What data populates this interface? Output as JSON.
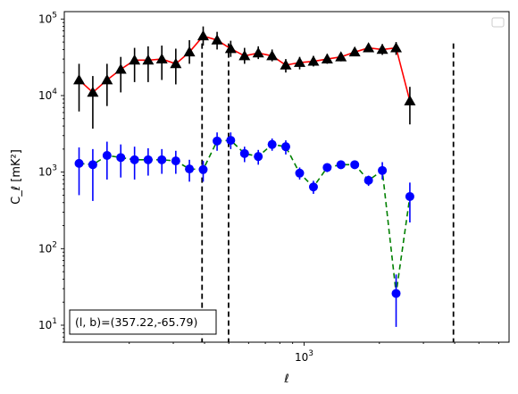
{
  "chart_data": {
    "type": "line",
    "xscale": "log",
    "yscale": "log",
    "xlim": [
      110,
      6600
    ],
    "ylim": [
      6,
      125000
    ],
    "xlabel": "ℓ",
    "ylabel": "C_ℓ  [mK²]",
    "x_tick_labels": [
      {
        "value": 1000,
        "base": "10",
        "exp": "3"
      }
    ],
    "y_tick_labels": [
      {
        "value": 10,
        "base": "10",
        "exp": "1"
      },
      {
        "value": 100,
        "base": "10",
        "exp": "2"
      },
      {
        "value": 1000,
        "base": "10",
        "exp": "3"
      },
      {
        "value": 10000,
        "base": "10",
        "exp": "4"
      },
      {
        "value": 100000,
        "base": "10",
        "exp": "5"
      }
    ],
    "annotation": "(l, b)=(357.22,-65.79)",
    "legend": {
      "placement": "top-right",
      "entries": []
    },
    "vertical_lines": [
      391,
      499,
      3955
    ],
    "series": [
      {
        "color": "#ff0000",
        "linestyle": "solid",
        "marker": "triangle",
        "marker_color": "#000000",
        "errorbar_color": "#000000",
        "points": [
          {
            "x": 126,
            "y": 16000,
            "lo": 6200,
            "hi": 26000
          },
          {
            "x": 143,
            "y": 11000,
            "lo": 3700,
            "hi": 18000
          },
          {
            "x": 163,
            "y": 16000,
            "lo": 7300,
            "hi": 26000
          },
          {
            "x": 185,
            "y": 22000,
            "lo": 11000,
            "hi": 32000
          },
          {
            "x": 210,
            "y": 29000,
            "lo": 15000,
            "hi": 42000
          },
          {
            "x": 238,
            "y": 29000,
            "lo": 15000,
            "hi": 44000
          },
          {
            "x": 270,
            "y": 30000,
            "lo": 16000,
            "hi": 45000
          },
          {
            "x": 307,
            "y": 26000,
            "lo": 14000,
            "hi": 41000
          },
          {
            "x": 348,
            "y": 37000,
            "lo": 26000,
            "hi": 53000
          },
          {
            "x": 395,
            "y": 60000,
            "lo": 45000,
            "hi": 80000
          },
          {
            "x": 449,
            "y": 53000,
            "lo": 40000,
            "hi": 68000
          },
          {
            "x": 509,
            "y": 41000,
            "lo": 32000,
            "hi": 52000
          },
          {
            "x": 578,
            "y": 33000,
            "lo": 26000,
            "hi": 42000
          },
          {
            "x": 656,
            "y": 36000,
            "lo": 30000,
            "hi": 44000
          },
          {
            "x": 745,
            "y": 33000,
            "lo": 28000,
            "hi": 40000
          },
          {
            "x": 845,
            "y": 25000,
            "lo": 20000,
            "hi": 30000
          },
          {
            "x": 960,
            "y": 27000,
            "lo": 22000,
            "hi": 32000
          },
          {
            "x": 1090,
            "y": 28000,
            "lo": 24000,
            "hi": 33000
          },
          {
            "x": 1237,
            "y": 30000,
            "lo": 26000,
            "hi": 35000
          },
          {
            "x": 1404,
            "y": 32000,
            "lo": 28000,
            "hi": 36000
          },
          {
            "x": 1594,
            "y": 37000,
            "lo": 33000,
            "hi": 41000
          },
          {
            "x": 1810,
            "y": 42000,
            "lo": 38000,
            "hi": 47000
          },
          {
            "x": 2055,
            "y": 40000,
            "lo": 34000,
            "hi": 47000
          },
          {
            "x": 2333,
            "y": 42000,
            "lo": 34000,
            "hi": 50000
          },
          {
            "x": 2648,
            "y": 8500,
            "lo": 4200,
            "hi": 13000
          }
        ]
      },
      {
        "color": "#008000",
        "linestyle": "dashed",
        "marker": "circle",
        "marker_color": "#0000ff",
        "errorbar_color": "#0000ff",
        "points": [
          {
            "x": 126,
            "y": 1300,
            "lo": 500,
            "hi": 2100
          },
          {
            "x": 143,
            "y": 1250,
            "lo": 420,
            "hi": 2000
          },
          {
            "x": 163,
            "y": 1650,
            "lo": 800,
            "hi": 2500
          },
          {
            "x": 185,
            "y": 1550,
            "lo": 850,
            "hi": 2300
          },
          {
            "x": 210,
            "y": 1450,
            "lo": 800,
            "hi": 2150
          },
          {
            "x": 238,
            "y": 1450,
            "lo": 900,
            "hi": 2050
          },
          {
            "x": 270,
            "y": 1450,
            "lo": 950,
            "hi": 2000
          },
          {
            "x": 307,
            "y": 1400,
            "lo": 950,
            "hi": 1900
          },
          {
            "x": 348,
            "y": 1100,
            "lo": 750,
            "hi": 1450
          },
          {
            "x": 395,
            "y": 1080,
            "lo": 750,
            "hi": 1400
          },
          {
            "x": 449,
            "y": 2550,
            "lo": 1900,
            "hi": 3300
          },
          {
            "x": 509,
            "y": 2600,
            "lo": 2000,
            "hi": 3300
          },
          {
            "x": 578,
            "y": 1750,
            "lo": 1350,
            "hi": 2150
          },
          {
            "x": 656,
            "y": 1600,
            "lo": 1250,
            "hi": 1950
          },
          {
            "x": 745,
            "y": 2300,
            "lo": 1900,
            "hi": 2750
          },
          {
            "x": 845,
            "y": 2150,
            "lo": 1700,
            "hi": 2600
          },
          {
            "x": 960,
            "y": 970,
            "lo": 800,
            "hi": 1150
          },
          {
            "x": 1090,
            "y": 640,
            "lo": 520,
            "hi": 770
          },
          {
            "x": 1237,
            "y": 1150,
            "lo": 1000,
            "hi": 1300
          },
          {
            "x": 1404,
            "y": 1250,
            "lo": 1100,
            "hi": 1400
          },
          {
            "x": 1594,
            "y": 1250,
            "lo": 1100,
            "hi": 1400
          },
          {
            "x": 1810,
            "y": 780,
            "lo": 660,
            "hi": 900
          },
          {
            "x": 2055,
            "y": 1050,
            "lo": 800,
            "hi": 1350
          },
          {
            "x": 2333,
            "y": 26,
            "lo": 9.5,
            "hi": 46
          },
          {
            "x": 2648,
            "y": 480,
            "lo": 220,
            "hi": 730
          }
        ]
      }
    ]
  }
}
